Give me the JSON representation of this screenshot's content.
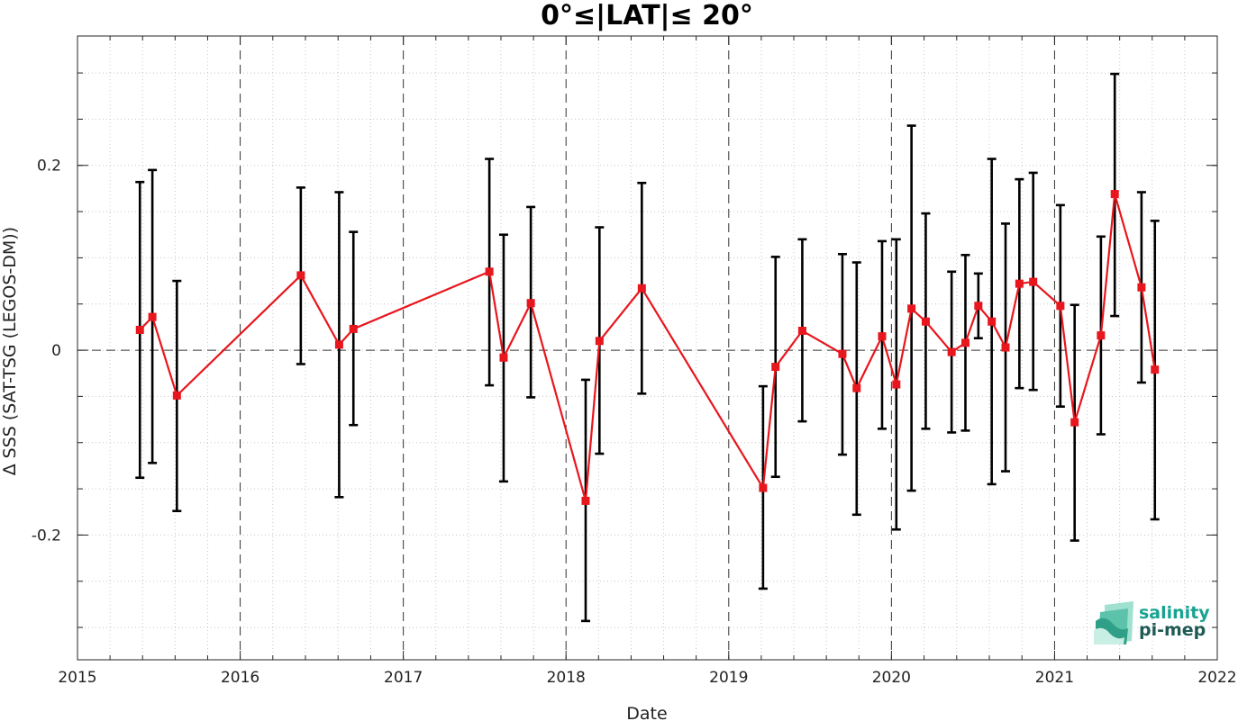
{
  "chart_data": {
    "type": "line",
    "title": "0°≤|LAT|≤ 20°",
    "xlabel": "Date",
    "ylabel": "∆ SSS (SAT-TSG (LEGOS-DM))",
    "xlim": [
      "2015-01-01",
      "2022-01-01"
    ],
    "ylim": [
      -0.335,
      0.34
    ],
    "x_ticks": [
      "2015",
      "2016",
      "2017",
      "2018",
      "2019",
      "2020",
      "2021",
      "2022"
    ],
    "y_ticks": [
      -0.2,
      0,
      0.2
    ],
    "y_tick_labels": [
      "-0.2",
      "0",
      "0.2"
    ],
    "grid": "dotted minor grid",
    "reference_line_y": 0,
    "year_boundary_lines": [
      "2016",
      "2017",
      "2018",
      "2019",
      "2020",
      "2021"
    ],
    "series": [
      {
        "color": "#e8161d",
        "marker": "square",
        "points": [
          {
            "x": "2015-05-21",
            "y": 0.022,
            "err_low": -0.138,
            "err_high": 0.182
          },
          {
            "x": "2015-06-18",
            "y": 0.036,
            "err_low": -0.122,
            "err_high": 0.195
          },
          {
            "x": "2015-08-12",
            "y": -0.049,
            "err_low": -0.174,
            "err_high": 0.075
          },
          {
            "x": "2016-05-16",
            "y": 0.081,
            "err_low": -0.015,
            "err_high": 0.176
          },
          {
            "x": "2016-08-10",
            "y": 0.006,
            "err_low": -0.159,
            "err_high": 0.171
          },
          {
            "x": "2016-09-11",
            "y": 0.023,
            "err_low": -0.081,
            "err_high": 0.128
          },
          {
            "x": "2017-07-13",
            "y": 0.085,
            "err_low": -0.038,
            "err_high": 0.207
          },
          {
            "x": "2017-08-14",
            "y": -0.008,
            "err_low": -0.142,
            "err_high": 0.125
          },
          {
            "x": "2017-10-14",
            "y": 0.051,
            "err_low": -0.051,
            "err_high": 0.155
          },
          {
            "x": "2018-02-14",
            "y": -0.163,
            "err_low": -0.293,
            "err_high": -0.032
          },
          {
            "x": "2018-03-17",
            "y": 0.01,
            "err_low": -0.112,
            "err_high": 0.133
          },
          {
            "x": "2018-06-20",
            "y": 0.067,
            "err_low": -0.047,
            "err_high": 0.181
          },
          {
            "x": "2019-03-19",
            "y": -0.149,
            "err_low": -0.258,
            "err_high": -0.039
          },
          {
            "x": "2019-04-16",
            "y": -0.018,
            "err_low": -0.137,
            "err_high": 0.101
          },
          {
            "x": "2019-06-15",
            "y": 0.021,
            "err_low": -0.077,
            "err_high": 0.12
          },
          {
            "x": "2019-09-13",
            "y": -0.004,
            "err_low": -0.113,
            "err_high": 0.104
          },
          {
            "x": "2019-10-15",
            "y": -0.041,
            "err_low": -0.178,
            "err_high": 0.095
          },
          {
            "x": "2019-12-11",
            "y": 0.015,
            "err_low": -0.085,
            "err_high": 0.118
          },
          {
            "x": "2020-01-12",
            "y": -0.037,
            "err_low": -0.194,
            "err_high": 0.12
          },
          {
            "x": "2020-02-15",
            "y": 0.045,
            "err_low": -0.152,
            "err_high": 0.243
          },
          {
            "x": "2020-03-18",
            "y": 0.031,
            "err_low": -0.085,
            "err_high": 0.148
          },
          {
            "x": "2020-05-15",
            "y": -0.002,
            "err_low": -0.089,
            "err_high": 0.085
          },
          {
            "x": "2020-06-15",
            "y": 0.008,
            "err_low": -0.087,
            "err_high": 0.103
          },
          {
            "x": "2020-07-14",
            "y": 0.048,
            "err_low": 0.013,
            "err_high": 0.083
          },
          {
            "x": "2020-08-13",
            "y": 0.031,
            "err_low": -0.145,
            "err_high": 0.207
          },
          {
            "x": "2020-09-13",
            "y": 0.003,
            "err_low": -0.131,
            "err_high": 0.137
          },
          {
            "x": "2020-10-14",
            "y": 0.072,
            "err_low": -0.041,
            "err_high": 0.185
          },
          {
            "x": "2020-11-14",
            "y": 0.074,
            "err_low": -0.043,
            "err_high": 0.192
          },
          {
            "x": "2021-01-14",
            "y": 0.048,
            "err_low": -0.061,
            "err_high": 0.157
          },
          {
            "x": "2021-02-15",
            "y": -0.078,
            "err_low": -0.206,
            "err_high": 0.049
          },
          {
            "x": "2021-04-15",
            "y": 0.016,
            "err_low": -0.091,
            "err_high": 0.123
          },
          {
            "x": "2021-05-16",
            "y": 0.169,
            "err_low": 0.037,
            "err_high": 0.299
          },
          {
            "x": "2021-07-15",
            "y": 0.068,
            "err_low": -0.035,
            "err_high": 0.171
          },
          {
            "x": "2021-08-14",
            "y": -0.021,
            "err_low": -0.183,
            "err_high": 0.14
          }
        ]
      }
    ]
  },
  "logo": {
    "line1": "salinity",
    "line2": "pi-mep",
    "color1": "#17a391",
    "color2": "#1f5a54"
  },
  "colors": {
    "series_line": "#e8161d",
    "error_bar": "#000000",
    "grid": "#c8c8c8",
    "dashed_line": "#333333"
  }
}
